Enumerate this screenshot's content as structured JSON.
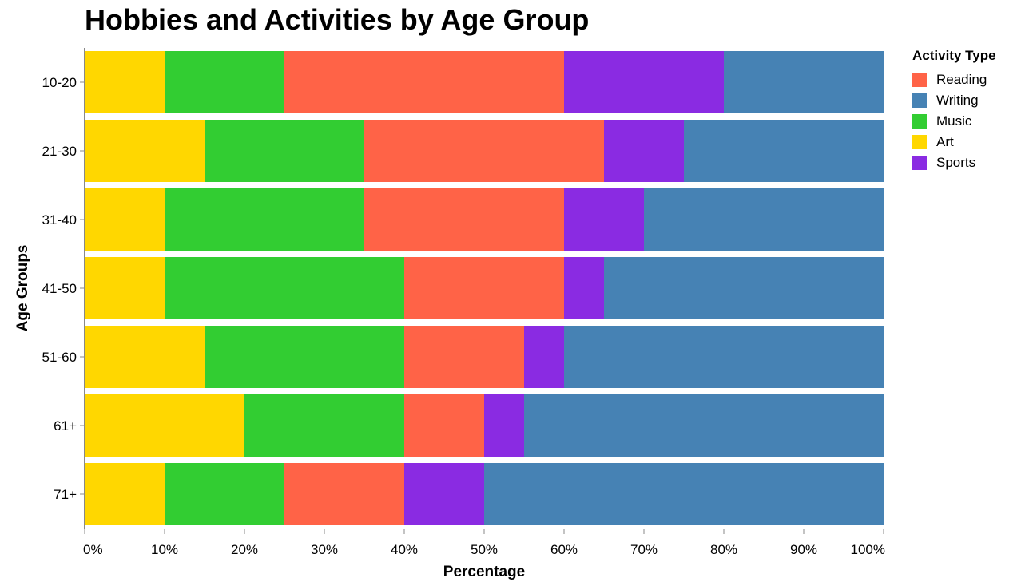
{
  "chart_data": {
    "type": "bar",
    "orientation": "horizontal",
    "stacked": true,
    "normalized": true,
    "title": "Hobbies and Activities by Age Group",
    "xlabel": "Percentage",
    "ylabel": "Age Groups",
    "xlim": [
      0,
      100
    ],
    "x_ticks": [
      "0%",
      "10%",
      "20%",
      "30%",
      "40%",
      "50%",
      "60%",
      "70%",
      "80%",
      "90%",
      "100%"
    ],
    "categories": [
      "10-20",
      "21-30",
      "31-40",
      "41-50",
      "51-60",
      "61+",
      "71+"
    ],
    "stack_order": [
      "Art",
      "Music",
      "Reading",
      "Sports",
      "Writing"
    ],
    "legend_title": "Activity Type",
    "legend_placement": "right",
    "grid": false,
    "series": [
      {
        "name": "Reading",
        "color": "#FF6347",
        "values": [
          35,
          30,
          25,
          20,
          15,
          10,
          15
        ]
      },
      {
        "name": "Writing",
        "color": "#4682B4",
        "values": [
          20,
          25,
          30,
          35,
          40,
          45,
          50
        ]
      },
      {
        "name": "Music",
        "color": "#32CD32",
        "values": [
          15,
          20,
          25,
          30,
          25,
          20,
          15
        ]
      },
      {
        "name": "Art",
        "color": "#FFD700",
        "values": [
          10,
          15,
          10,
          10,
          15,
          20,
          10
        ]
      },
      {
        "name": "Sports",
        "color": "#8A2BE2",
        "values": [
          20,
          10,
          10,
          5,
          5,
          5,
          10
        ]
      }
    ]
  }
}
